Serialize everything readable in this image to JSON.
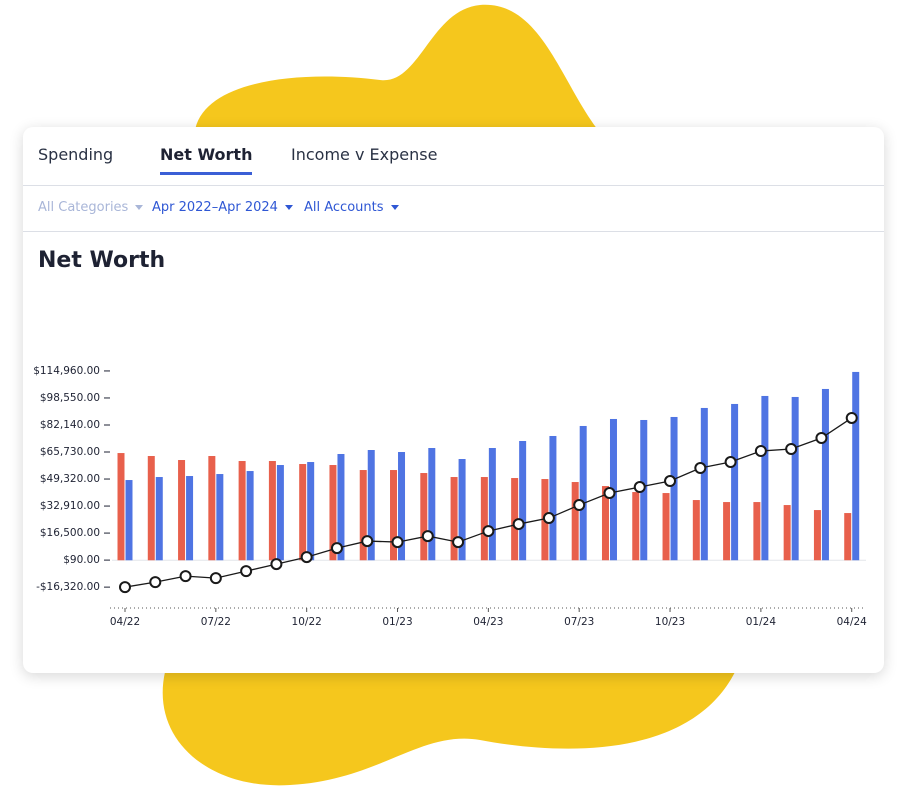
{
  "tabs": [
    "Spending",
    "Net Worth",
    "Income v Expense"
  ],
  "selected_tab": 1,
  "filters": [
    {
      "label": "All Categories",
      "enabled": false
    },
    {
      "label": "Apr 2022–Apr 2024",
      "enabled": true
    },
    {
      "label": "All Accounts",
      "enabled": true
    }
  ],
  "chart_data": {
    "type": "bar-line",
    "title": "Net Worth",
    "categories": [
      "04/22",
      null,
      null,
      "07/22",
      null,
      null,
      "10/22",
      null,
      null,
      "01/23",
      null,
      null,
      "04/23",
      null,
      null,
      "07/23",
      null,
      null,
      "10/23",
      null,
      null,
      "01/24",
      null,
      null,
      "04/24"
    ],
    "series": [
      {
        "type": "bar",
        "color": "#e8604c",
        "values": [
          65100,
          63300,
          60870,
          63300,
          60260,
          60260,
          58440,
          57830,
          54790,
          54790,
          52970,
          50540,
          50540,
          49930,
          49320,
          47500,
          45060,
          41420,
          40810,
          36560,
          35340,
          35340,
          33520,
          30480,
          28660
        ]
      },
      {
        "type": "bar",
        "color": "#4f74e3",
        "values": [
          48710,
          50540,
          51150,
          52360,
          54180,
          57830,
          59650,
          64520,
          66950,
          65730,
          68160,
          61480,
          68160,
          72420,
          75460,
          81540,
          85790,
          85180,
          87010,
          92480,
          94910,
          99770,
          99160,
          104020,
          114360
        ]
      },
      {
        "type": "line",
        "color": "#1a1a1a",
        "values": [
          -16320,
          -13280,
          -9640,
          -10850,
          -6600,
          -2340,
          1910,
          7380,
          11640,
          11030,
          14680,
          11030,
          17720,
          21970,
          25620,
          33520,
          40810,
          44460,
          48110,
          56010,
          59650,
          66340,
          67560,
          74240,
          86400
        ]
      }
    ],
    "ylim": [
      -29000,
      121000
    ],
    "yticks": [
      {
        "value": 114960,
        "label": "$114,960.00"
      },
      {
        "value": 98550,
        "label": "$98,550.00"
      },
      {
        "value": 82140,
        "label": "$82,140.00"
      },
      {
        "value": 65730,
        "label": "$65,730.00"
      },
      {
        "value": 49320,
        "label": "$49,320.00"
      },
      {
        "value": 32910,
        "label": "$32,910.00"
      },
      {
        "value": 16500,
        "label": "$16,500.00"
      },
      {
        "value": 90,
        "label": "$90.00"
      },
      {
        "value": -16320,
        "label": "-$16,320.00"
      }
    ],
    "grid": false
  }
}
